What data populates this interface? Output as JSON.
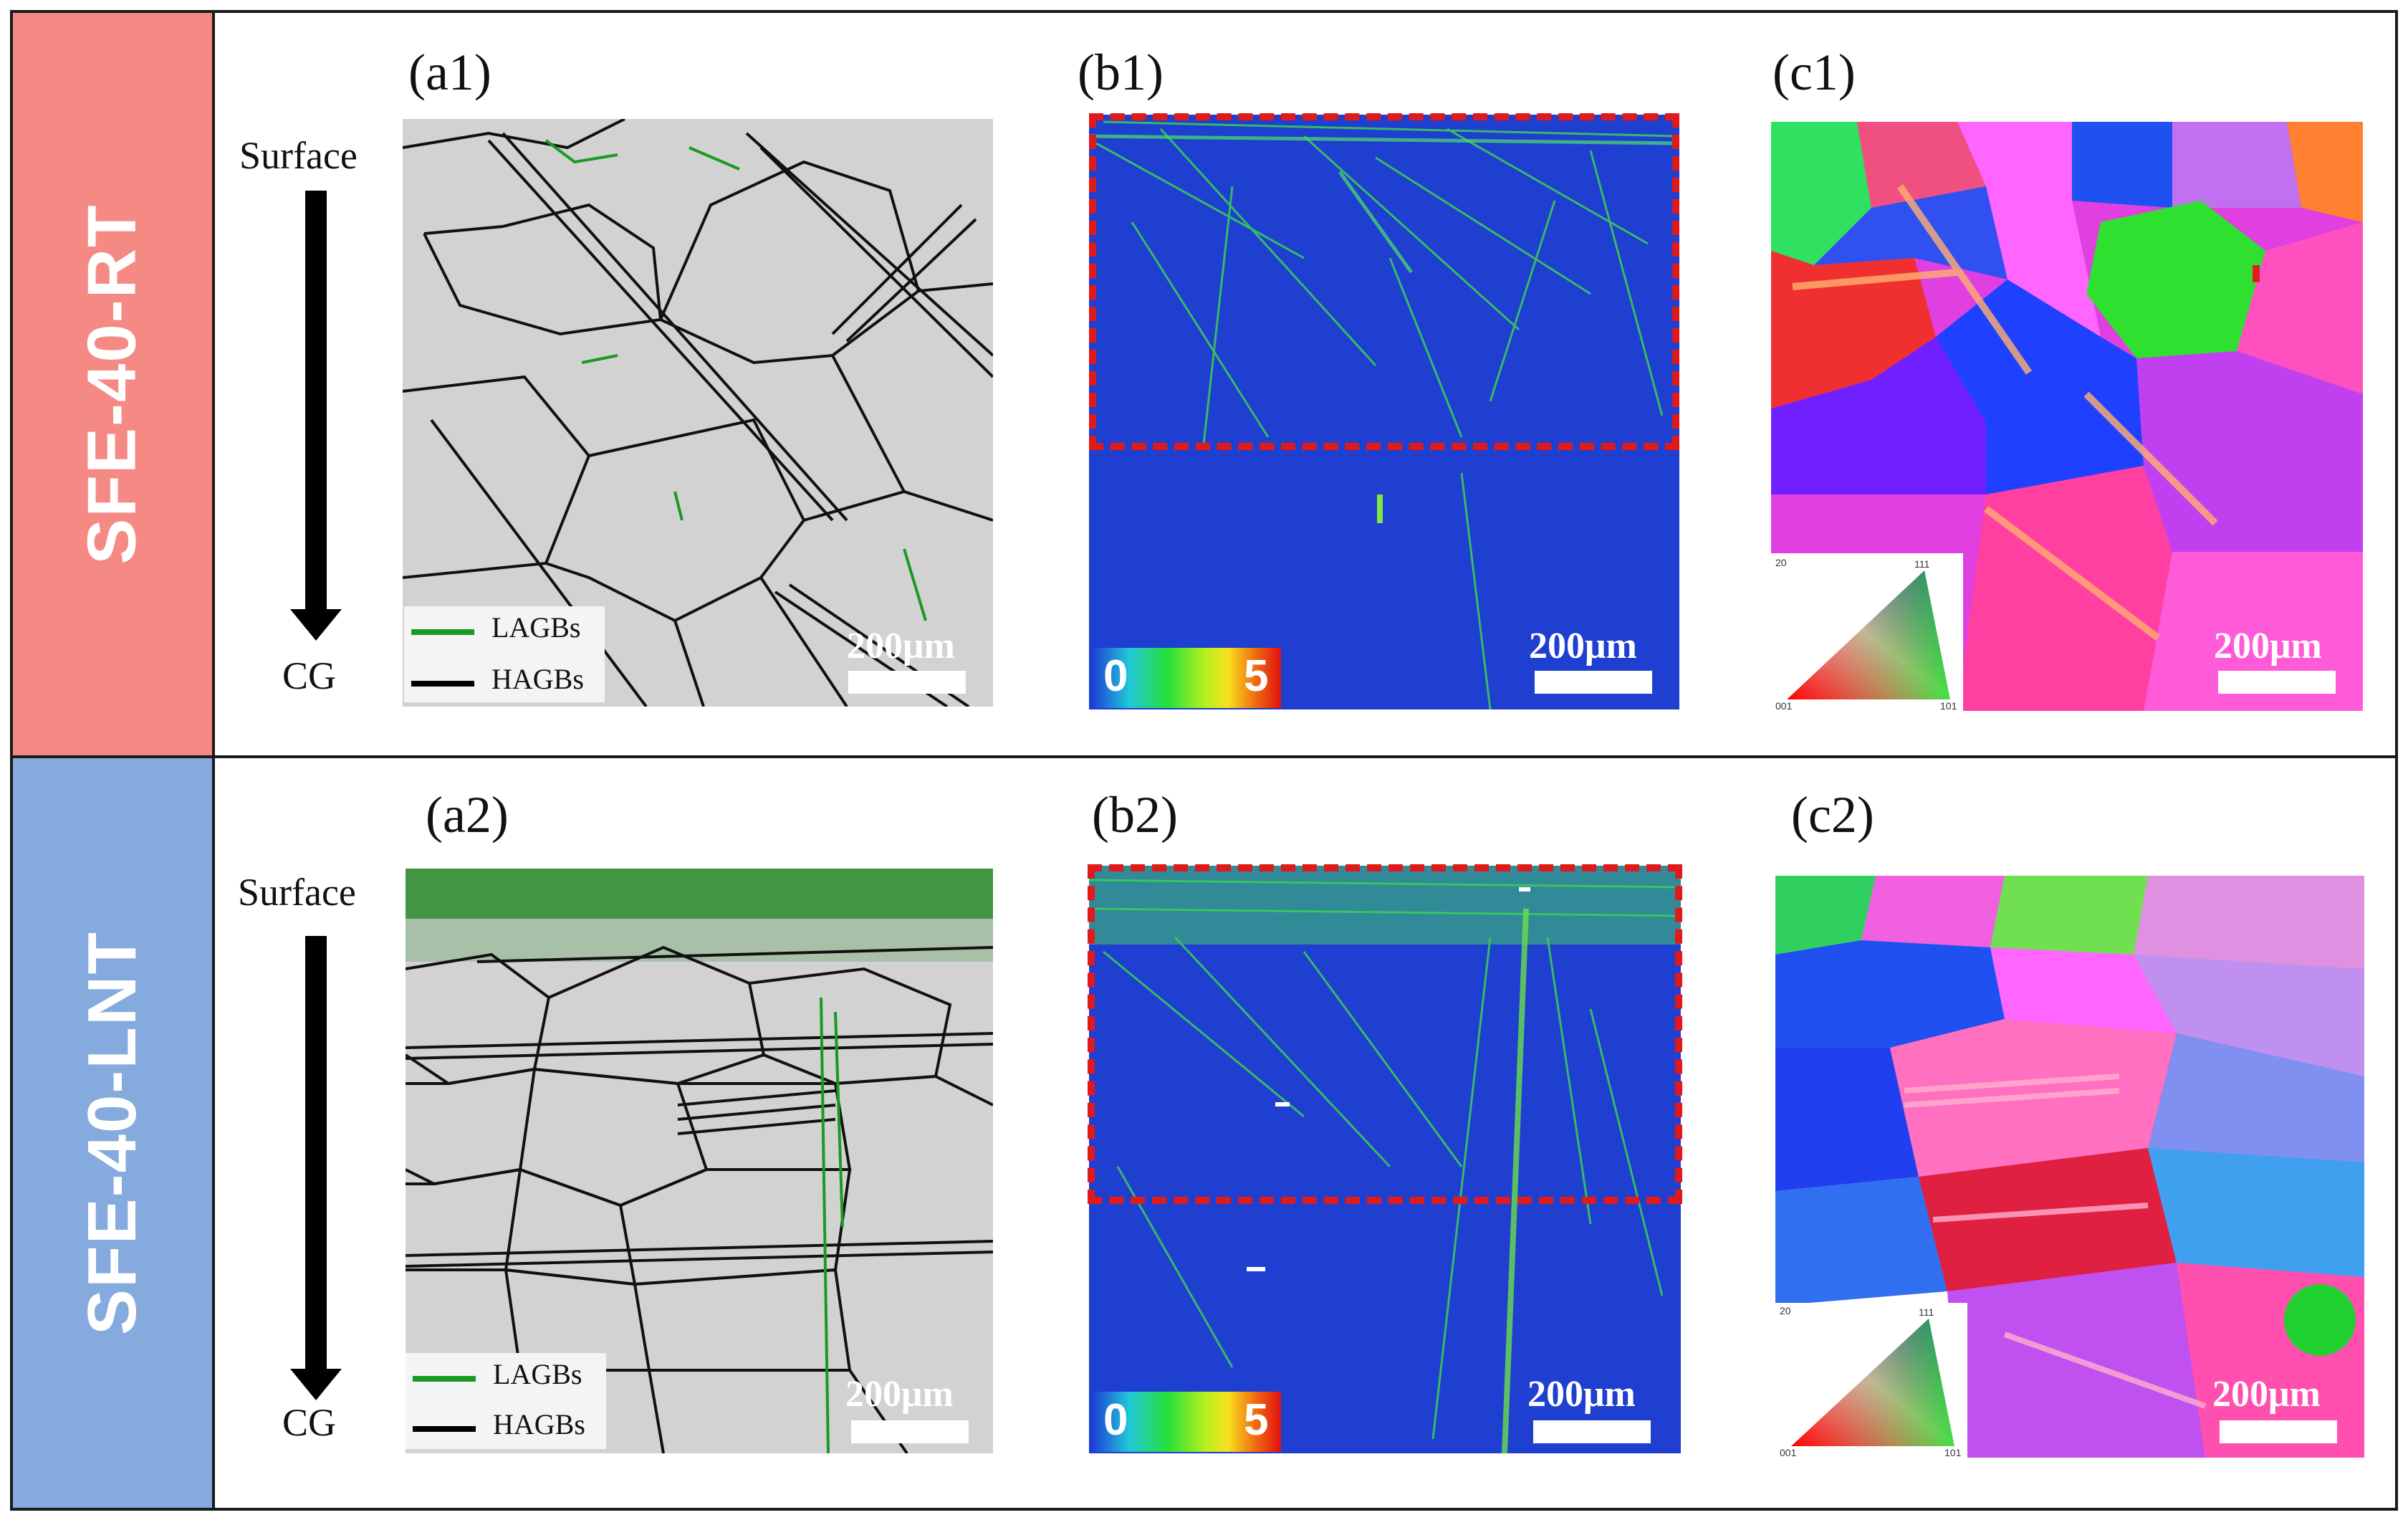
{
  "rows": [
    {
      "label": "SFE-40-RT",
      "color": "#f58a85"
    },
    {
      "label": "SFE-40-LNT",
      "color": "#85aadd"
    }
  ],
  "panels": {
    "a1": "(a1)",
    "b1": "(b1)",
    "c1": "(c1)",
    "a2": "(a2)",
    "b2": "(b2)",
    "c2": "(c2)"
  },
  "depth_axis": {
    "top": "Surface",
    "bottom": "CG"
  },
  "legend": {
    "lagb": "LAGBs",
    "hagb": "HAGBs",
    "lagb_color": "#1a9a22",
    "hagb_color": "#000000"
  },
  "scale_bar": "200μm",
  "kam_colorbar": {
    "min": "0",
    "max": "5"
  },
  "ipf_key": {
    "top_left": "20",
    "corner_111": "111",
    "corner_001": "001",
    "corner_101": "101"
  },
  "colors": {
    "kam_background": "#1e3fd0",
    "highlight_box": "#e01a1a"
  }
}
